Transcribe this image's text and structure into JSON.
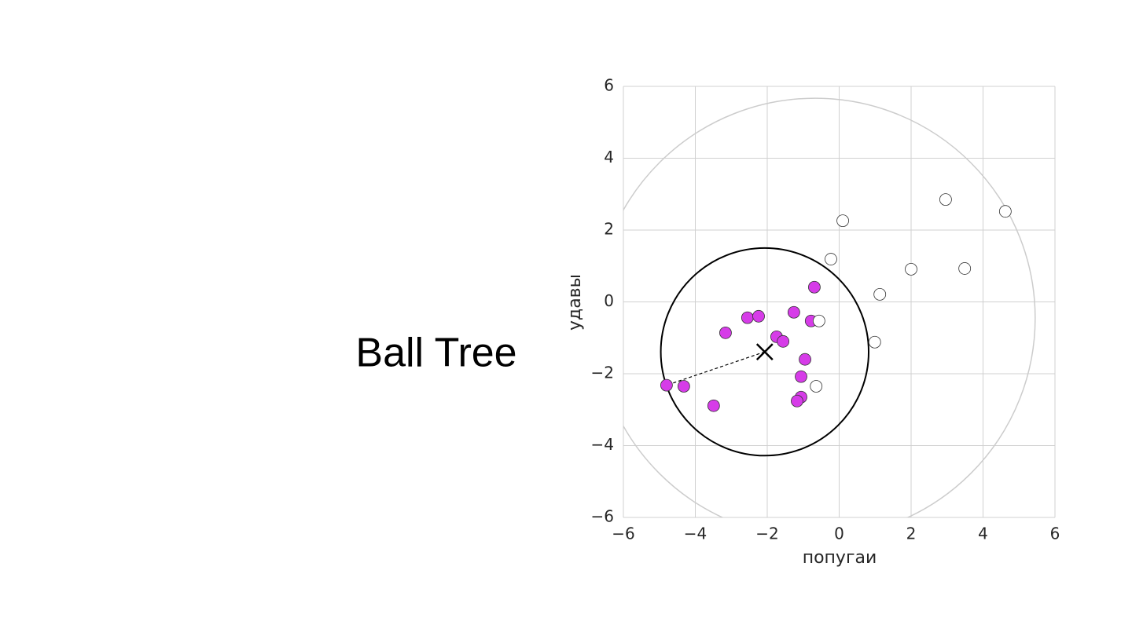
{
  "slide_title": "Ball Tree",
  "chart_data": {
    "type": "scatter",
    "xlabel": "попугаи",
    "ylabel": "удавы",
    "xlim": [
      -6,
      6
    ],
    "ylim": [
      -6,
      6
    ],
    "xticks": [
      {
        "value": -6,
        "label": "−6"
      },
      {
        "value": -4,
        "label": "−4"
      },
      {
        "value": -2,
        "label": "−2"
      },
      0,
      2,
      4,
      6
    ],
    "yticks": [
      {
        "value": -6,
        "label": "−6"
      },
      {
        "value": -4,
        "label": "−4"
      },
      {
        "value": -2,
        "label": "−2"
      },
      0,
      2,
      4,
      6
    ],
    "grid": true,
    "series": [
      {
        "color": "#d63ce8",
        "x": [
          -4.8,
          -4.32,
          -3.49,
          -3.16,
          -2.55,
          -2.24,
          -1.74,
          -1.56,
          -1.26,
          -0.69,
          -0.78,
          -0.95,
          -1.06,
          -1.06,
          -1.17
        ],
        "values": [
          -2.32,
          -2.35,
          -2.89,
          -0.86,
          -0.44,
          -0.4,
          -0.97,
          -1.1,
          -0.29,
          0.41,
          -0.53,
          -1.6,
          -2.08,
          -2.65,
          -2.76
        ]
      },
      {
        "color": "#ffffff",
        "x": [
          -0.56,
          -0.64,
          -0.23,
          0.1,
          0.99,
          1.13,
          2.0,
          2.96,
          3.49,
          4.62
        ],
        "values": [
          -0.53,
          -2.35,
          1.19,
          2.26,
          -1.12,
          0.21,
          0.91,
          2.85,
          0.93,
          2.52
        ]
      }
    ],
    "balls": [
      {
        "cx": -0.67,
        "cy": -0.45,
        "r": 6.12,
        "color": "#cccccc"
      },
      {
        "cx": -2.07,
        "cy": -1.39,
        "r": 2.89,
        "color": "#000000"
      }
    ]
  }
}
